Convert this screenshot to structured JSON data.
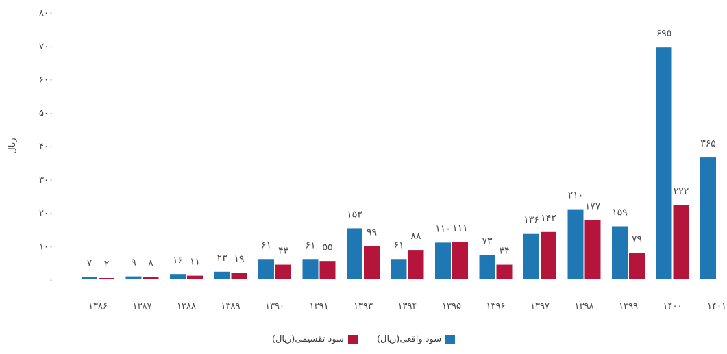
{
  "chart_data": {
    "type": "bar",
    "title": "",
    "xlabel": "",
    "ylabel": "ریال",
    "ylim": [
      0,
      800
    ],
    "yticks": [
      0,
      100,
      200,
      300,
      400,
      500,
      600,
      700,
      800
    ],
    "ytick_labels": [
      "۰",
      "۱۰۰",
      "۲۰۰",
      "۳۰۰",
      "۴۰۰",
      "۵۰۰",
      "۶۰۰",
      "۷۰۰",
      "۸۰۰"
    ],
    "categories": [
      "۱۳۸۶",
      "۱۳۸۷",
      "۱۳۸۸",
      "۱۳۸۹",
      "۱۳۹۰",
      "۱۳۹۱",
      "۱۳۹۳",
      "۱۳۹۴",
      "۱۳۹۵",
      "۱۳۹۶",
      "۱۳۹۷",
      "۱۳۹۸",
      "۱۳۹۹",
      "۱۴۰۰",
      "۱۴۰۱"
    ],
    "series": [
      {
        "name": "سود واقعی(ریال)",
        "color": "#1f77b4",
        "values": [
          7,
          9,
          16,
          23,
          61,
          61,
          153,
          61,
          110,
          73,
          136,
          210,
          159,
          695,
          365
        ],
        "labels": [
          "۷",
          "۹",
          "۱۶",
          "۲۳",
          "۶۱",
          "۶۱",
          "۱۵۳",
          "۶۱",
          "۱۱۰",
          "۷۳",
          "۱۳۶",
          "۲۱۰",
          "۱۵۹",
          "۶۹۵",
          "۳۶۵"
        ]
      },
      {
        "name": "سود تقسیمی(ریال)",
        "color": "#b5153a",
        "values": [
          2,
          8,
          11,
          19,
          44,
          55,
          99,
          88,
          111,
          44,
          142,
          177,
          79,
          222,
          null
        ],
        "labels": [
          "۲",
          "۸",
          "۱۱",
          "۱۹",
          "۴۴",
          "۵۵",
          "۹۹",
          "۸۸",
          "۱۱۱",
          "۴۴",
          "۱۴۲",
          "۱۷۷",
          "۷۹",
          "۲۲۲",
          ""
        ]
      }
    ],
    "grid": false,
    "legend_position": "bottom-center"
  }
}
